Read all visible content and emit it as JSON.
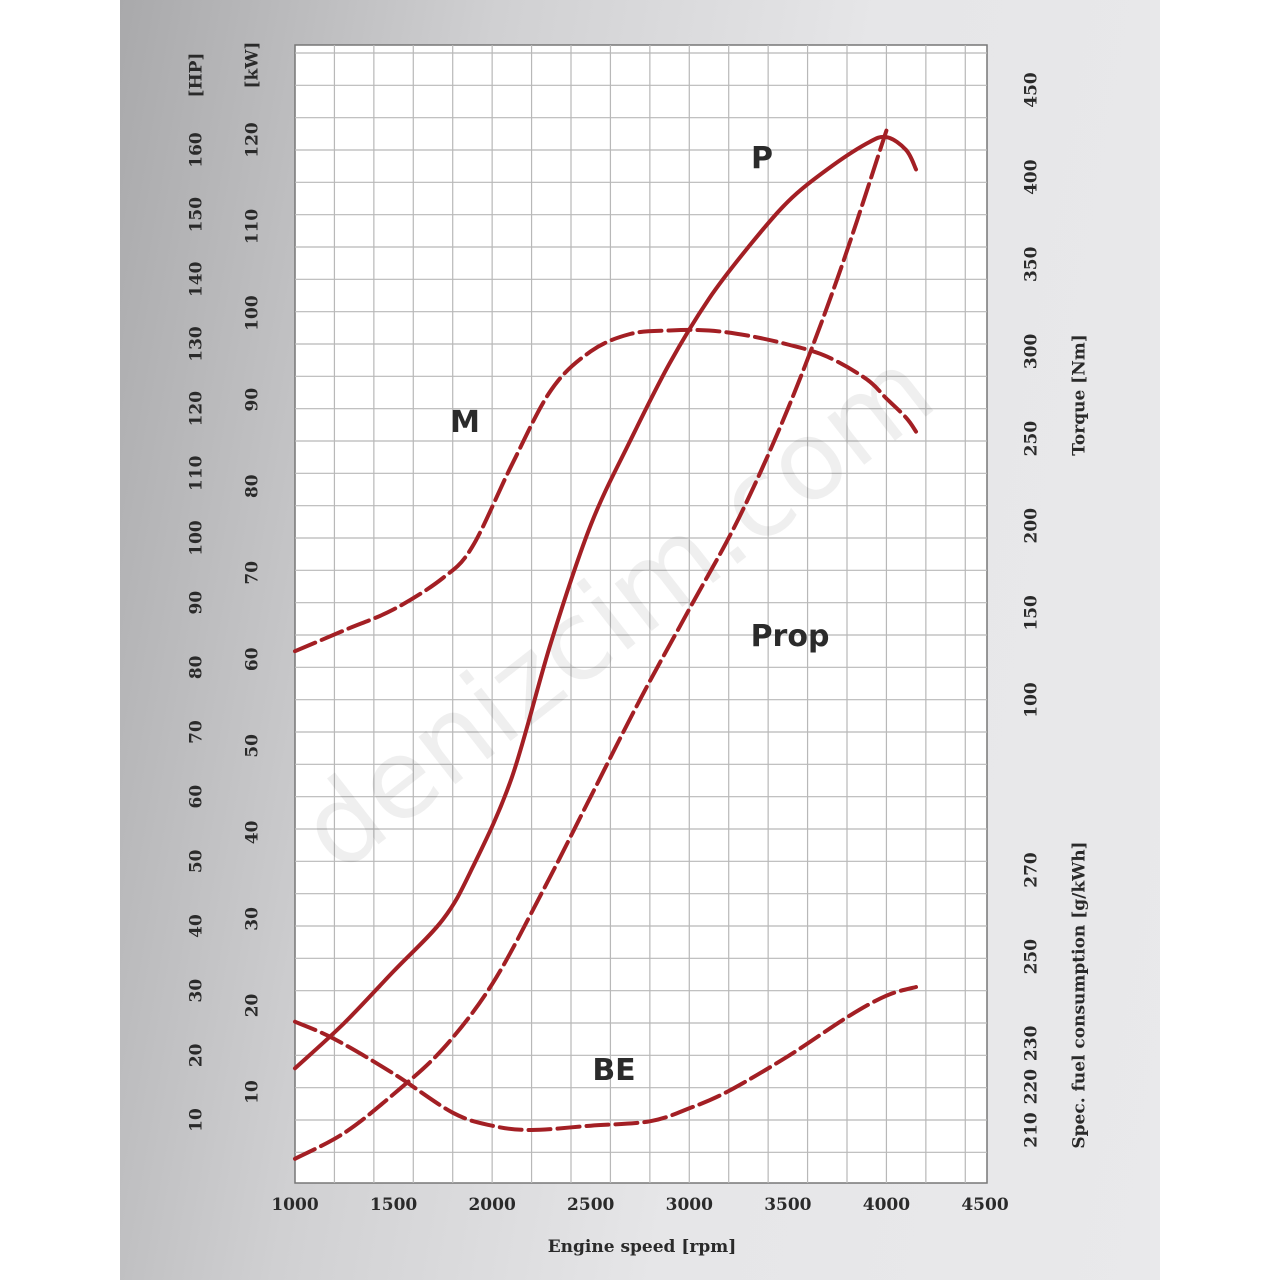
{
  "chart_data": {
    "type": "line",
    "watermark": "denizcim.com",
    "x_axis": {
      "label": "Engine speed [rpm]",
      "range": [
        1000,
        4500
      ],
      "ticks": [
        "1000",
        "1500",
        "2000",
        "2500",
        "3000",
        "3500",
        "4000",
        "4500"
      ]
    },
    "left_axes": [
      {
        "unit_label": "[HP]",
        "range": [
          0,
          170
        ],
        "ticks": [
          "10",
          "20",
          "30",
          "40",
          "50",
          "60",
          "70",
          "80",
          "90",
          "100",
          "110",
          "120",
          "130",
          "140",
          "150",
          "160"
        ]
      },
      {
        "unit_label": "[kW]",
        "range": [
          0,
          125
        ],
        "ticks": [
          "10",
          "20",
          "30",
          "40",
          "50",
          "60",
          "70",
          "80",
          "90",
          "100",
          "110",
          "120"
        ]
      }
    ],
    "right_axes": [
      {
        "label": "Torque [Nm]",
        "range": [
          0,
          460
        ],
        "ticks": [
          "100",
          "150",
          "200",
          "250",
          "300",
          "350",
          "400",
          "450"
        ]
      },
      {
        "label": "Spec. fuel consumption [g/kWh]",
        "range": [
          200,
          280
        ],
        "ticks": [
          "210",
          "220",
          "230",
          "250",
          "270"
        ]
      }
    ],
    "grid": true,
    "series_color": "#a31f24",
    "series": [
      {
        "name": "P",
        "axis": "HP",
        "style": "solid",
        "x": [
          1000,
          1250,
          1500,
          1750,
          1900,
          2100,
          2300,
          2500,
          2700,
          2900,
          3100,
          3300,
          3500,
          3700,
          3900,
          4000,
          4100,
          4150
        ],
        "y": [
          18,
          25,
          33,
          41,
          49,
          63,
          84,
          102,
          115,
          127,
          137,
          145,
          152,
          157,
          161,
          162,
          160,
          157
        ]
      },
      {
        "name": "M",
        "axis": "Torque",
        "style": "dash",
        "x": [
          1000,
          1250,
          1500,
          1750,
          1900,
          2100,
          2300,
          2500,
          2700,
          2900,
          3100,
          3300,
          3500,
          3700,
          3900,
          4000,
          4100,
          4150
        ],
        "y": [
          128,
          140,
          152,
          170,
          188,
          235,
          278,
          300,
          310,
          312,
          312,
          309,
          304,
          297,
          284,
          273,
          262,
          254
        ]
      },
      {
        "name": "Prop",
        "axis": "HP",
        "style": "dash",
        "x": [
          1000,
          1250,
          1500,
          1750,
          2000,
          2250,
          2500,
          2750,
          3000,
          3250,
          3500,
          3750,
          4000
        ],
        "y": [
          4,
          8,
          14,
          21,
          31,
          45,
          60,
          75,
          89,
          103,
          120,
          140,
          163
        ]
      },
      {
        "name": "BE",
        "axis": "SFC",
        "style": "dash",
        "x": [
          1000,
          1200,
          1500,
          1800,
          2000,
          2200,
          2500,
          2800,
          3000,
          3200,
          3500,
          3800,
          4000,
          4150
        ],
        "y": [
          235,
          231,
          223,
          214,
          211,
          210,
          211,
          212,
          215,
          219,
          227,
          236,
          241,
          243
        ]
      }
    ]
  }
}
